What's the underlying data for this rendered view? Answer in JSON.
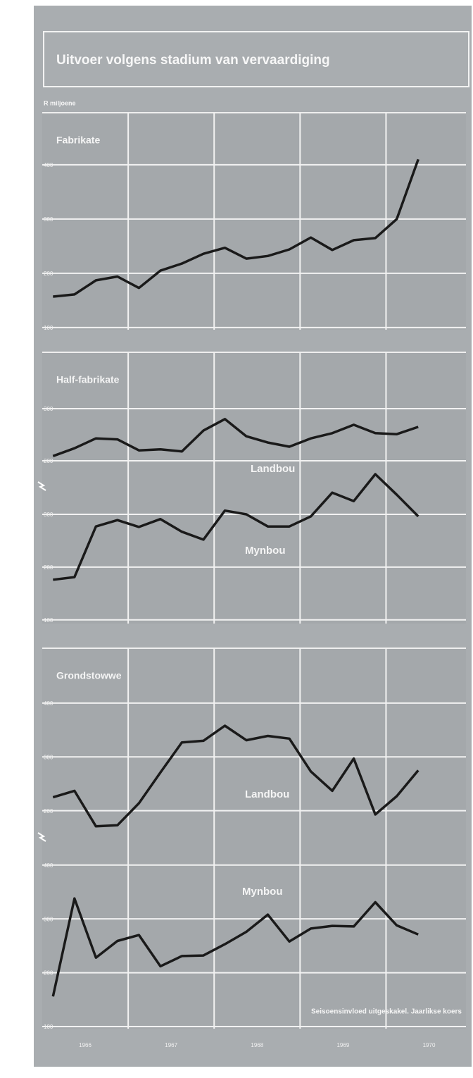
{
  "header": {
    "title": "Uitvoer volgens stadium van vervaardiging",
    "unit": "R miljoene"
  },
  "chart_data": [
    {
      "type": "line",
      "title": "Fabrikate",
      "x": [
        1966.125,
        1966.375,
        1966.625,
        1966.875,
        1967.125,
        1967.375,
        1967.625,
        1967.875,
        1968.125,
        1968.375,
        1968.625,
        1968.875,
        1969.125,
        1969.375,
        1969.625,
        1969.875,
        1970.125,
        1970.375
      ],
      "xlim": [
        1966,
        1970.93
      ],
      "xticks": [
        1966,
        1967,
        1968,
        1969,
        1970
      ],
      "ylim": [
        96,
        496
      ],
      "yticks": [
        400,
        300,
        200,
        100
      ],
      "grid": true,
      "color": "#1a1a1a",
      "values": [
        157,
        161,
        187,
        194,
        173,
        205,
        218,
        236,
        247,
        227,
        232,
        244,
        266,
        243,
        261,
        265,
        300,
        410
      ]
    },
    {
      "type": "line",
      "title": "Half-fabrikate",
      "x": [
        1966.125,
        1966.375,
        1966.625,
        1966.875,
        1967.125,
        1967.375,
        1967.625,
        1967.875,
        1968.125,
        1968.375,
        1968.625,
        1968.875,
        1969.125,
        1969.375,
        1969.625,
        1969.875,
        1970.125,
        1970.375
      ],
      "xlim": [
        1966,
        1970.93
      ],
      "xticks": [
        1966,
        1967,
        1968,
        1969,
        1970
      ],
      "ylim": [
        -112,
        408
      ],
      "yticks": [
        300,
        200
      ],
      "y2lim": [
        93,
        607
      ],
      "y2ticks": [
        300,
        200,
        100
      ],
      "grid": true,
      "series": [
        {
          "name": "Landbou",
          "color": "#1a1a1a",
          "values": [
            209,
            224,
            243,
            241,
            220,
            222,
            218,
            258,
            280,
            247,
            235,
            227,
            243,
            253,
            269,
            253,
            251,
            265
          ]
        },
        {
          "name": "Mynbou",
          "color": "#1a1a1a",
          "axis": "y2",
          "values": [
            176,
            181,
            277,
            289,
            276,
            291,
            267,
            252,
            307,
            300,
            277,
            277,
            296,
            341,
            325,
            376,
            337,
            296
          ]
        }
      ]
    },
    {
      "type": "line",
      "title": "Grondstowwe",
      "x": [
        1966.125,
        1966.375,
        1966.625,
        1966.875,
        1967.125,
        1967.375,
        1967.625,
        1967.875,
        1968.125,
        1968.375,
        1968.625,
        1968.875,
        1969.125,
        1969.375,
        1969.625,
        1969.875,
        1970.125,
        1970.375
      ],
      "xlim": [
        1966,
        1970.93
      ],
      "xticks": [
        1966,
        1967,
        1968,
        1969,
        1970
      ],
      "ylim": [
        -205,
        502
      ],
      "yticks": [
        400,
        300,
        200
      ],
      "y2lim": [
        96,
        803
      ],
      "y2ticks": [
        400,
        300,
        200,
        100
      ],
      "grid": true,
      "note": "Seisoensinvloed uitgeskakel. Jaarlikse koers",
      "series": [
        {
          "name": "Landbou",
          "color": "#1a1a1a",
          "values": [
            225,
            237,
            171,
            173,
            214,
            271,
            327,
            330,
            358,
            331,
            339,
            334,
            273,
            237,
            297,
            193,
            227,
            275
          ]
        },
        {
          "name": "Mynbou",
          "color": "#1a1a1a",
          "axis": "y2",
          "values": [
            156,
            338,
            228,
            259,
            270,
            212,
            231,
            232,
            253,
            276,
            308,
            258,
            282,
            287,
            286,
            331,
            288,
            271
          ]
        }
      ]
    }
  ]
}
